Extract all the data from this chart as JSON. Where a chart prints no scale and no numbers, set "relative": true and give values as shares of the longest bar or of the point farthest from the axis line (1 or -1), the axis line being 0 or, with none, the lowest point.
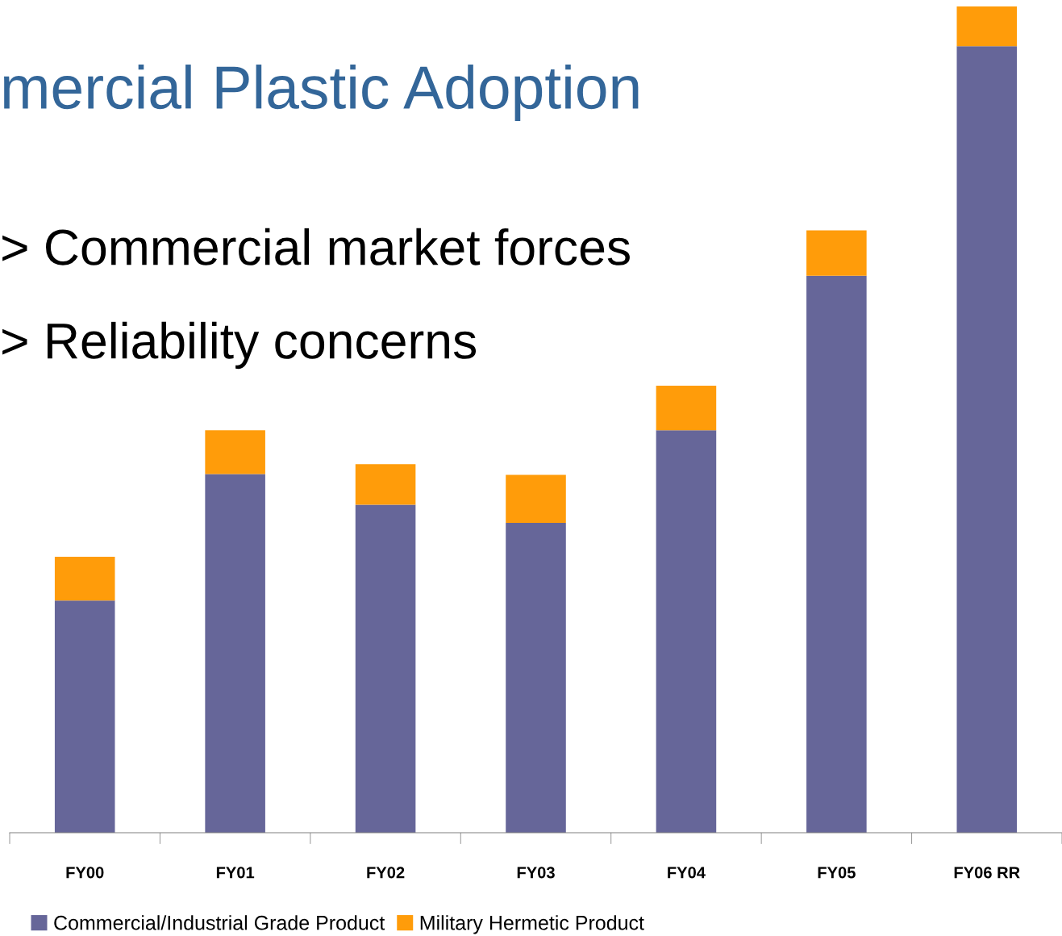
{
  "chart_data": {
    "type": "bar",
    "stacked": true,
    "relative": true,
    "title": "mercial Plastic Adoption",
    "annotations": [
      "> Commercial market forces",
      "> Reliability concerns"
    ],
    "categories": [
      "FY00",
      "FY01",
      "FY02",
      "FY03",
      "FY04",
      "FY05",
      "FY06 RR"
    ],
    "series": [
      {
        "name": "Commercial/Industrial Grade Product",
        "color": "#666699",
        "values": [
          0.281,
          0.434,
          0.397,
          0.375,
          0.487,
          0.674,
          0.952
        ]
      },
      {
        "name": "Military Hermetic Product",
        "color": "#ff9c0a",
        "values": [
          0.053,
          0.053,
          0.049,
          0.058,
          0.054,
          0.055,
          0.048
        ]
      }
    ],
    "legend": "bottom",
    "grid": false
  }
}
